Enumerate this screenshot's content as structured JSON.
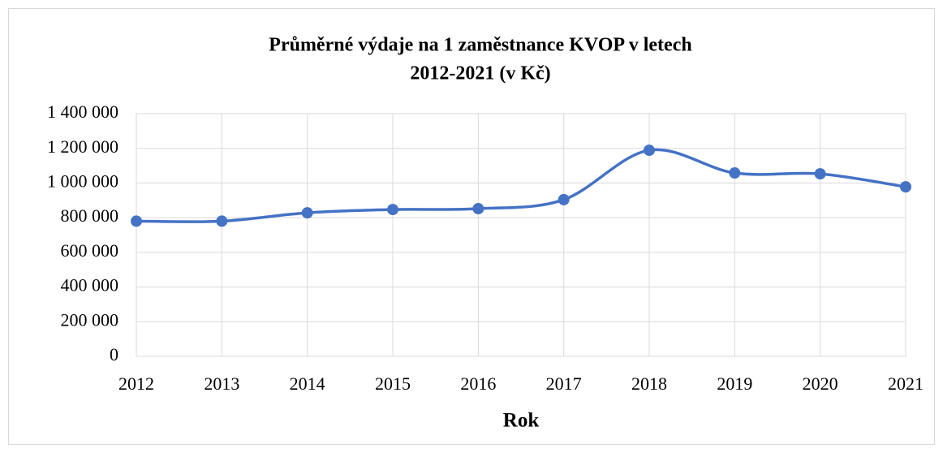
{
  "chart_data": {
    "type": "line",
    "title": "Průměrné výdaje na 1 zaměstnance KVOP v letech",
    "subtitle": "2012-2021 (v Kč)",
    "x_label": "Rok",
    "categories": [
      "2012",
      "2013",
      "2014",
      "2015",
      "2016",
      "2017",
      "2018",
      "2019",
      "2020",
      "2021"
    ],
    "series": [
      {
        "name": "Průměrné výdaje",
        "color": "#4472c4",
        "values": [
          780000,
          780000,
          828000,
          847000,
          852000,
          904000,
          1189000,
          1058000,
          1053000,
          978000
        ]
      }
    ],
    "ylim": [
      0,
      1400000
    ],
    "yticks": [
      0,
      {
        "value": 200000,
        "label": "200 000"
      },
      {
        "value": 400000,
        "label": "400 000"
      },
      {
        "value": 600000,
        "label": "600 000"
      },
      {
        "value": 800000,
        "label": "800 000"
      },
      {
        "value": 1000000,
        "label": "1 000 000"
      },
      {
        "value": 1200000,
        "label": "1 200 000"
      },
      {
        "value": 1400000,
        "label": "1 400 000"
      }
    ],
    "grid": true,
    "smooth": true
  }
}
